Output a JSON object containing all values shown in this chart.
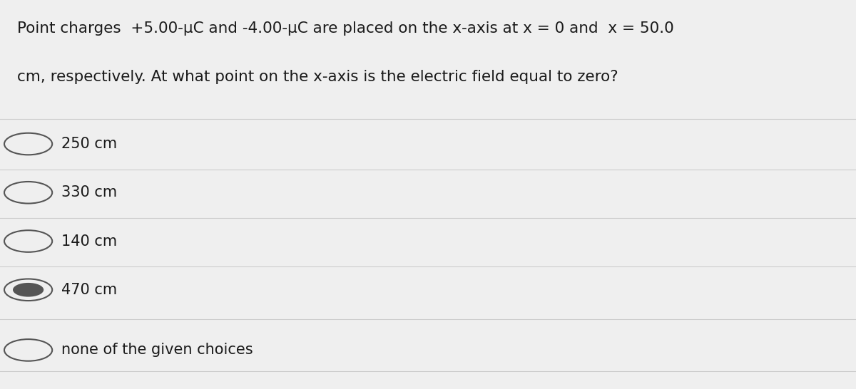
{
  "question_line1": "Point charges  +5.00-μC and -4.00-μC are placed on the x-axis at x = 0 and  x = 50.0",
  "question_line2": "cm, respectively. At what point on the x-axis is the electric field equal to zero?",
  "choices": [
    {
      "label": "250 cm",
      "selected": false
    },
    {
      "label": "330 cm",
      "selected": false
    },
    {
      "label": "140 cm",
      "selected": false
    },
    {
      "label": "470 cm",
      "selected": true
    },
    {
      "label": "none of the given choices",
      "selected": false
    }
  ],
  "bg_color": "#efefef",
  "text_color": "#1a1a1a",
  "divider_color": "#cccccc",
  "font_size_question": 15.5,
  "font_size_choices": 15.0,
  "selected_inner_color": "#555555",
  "radio_outer_color": "#555555"
}
